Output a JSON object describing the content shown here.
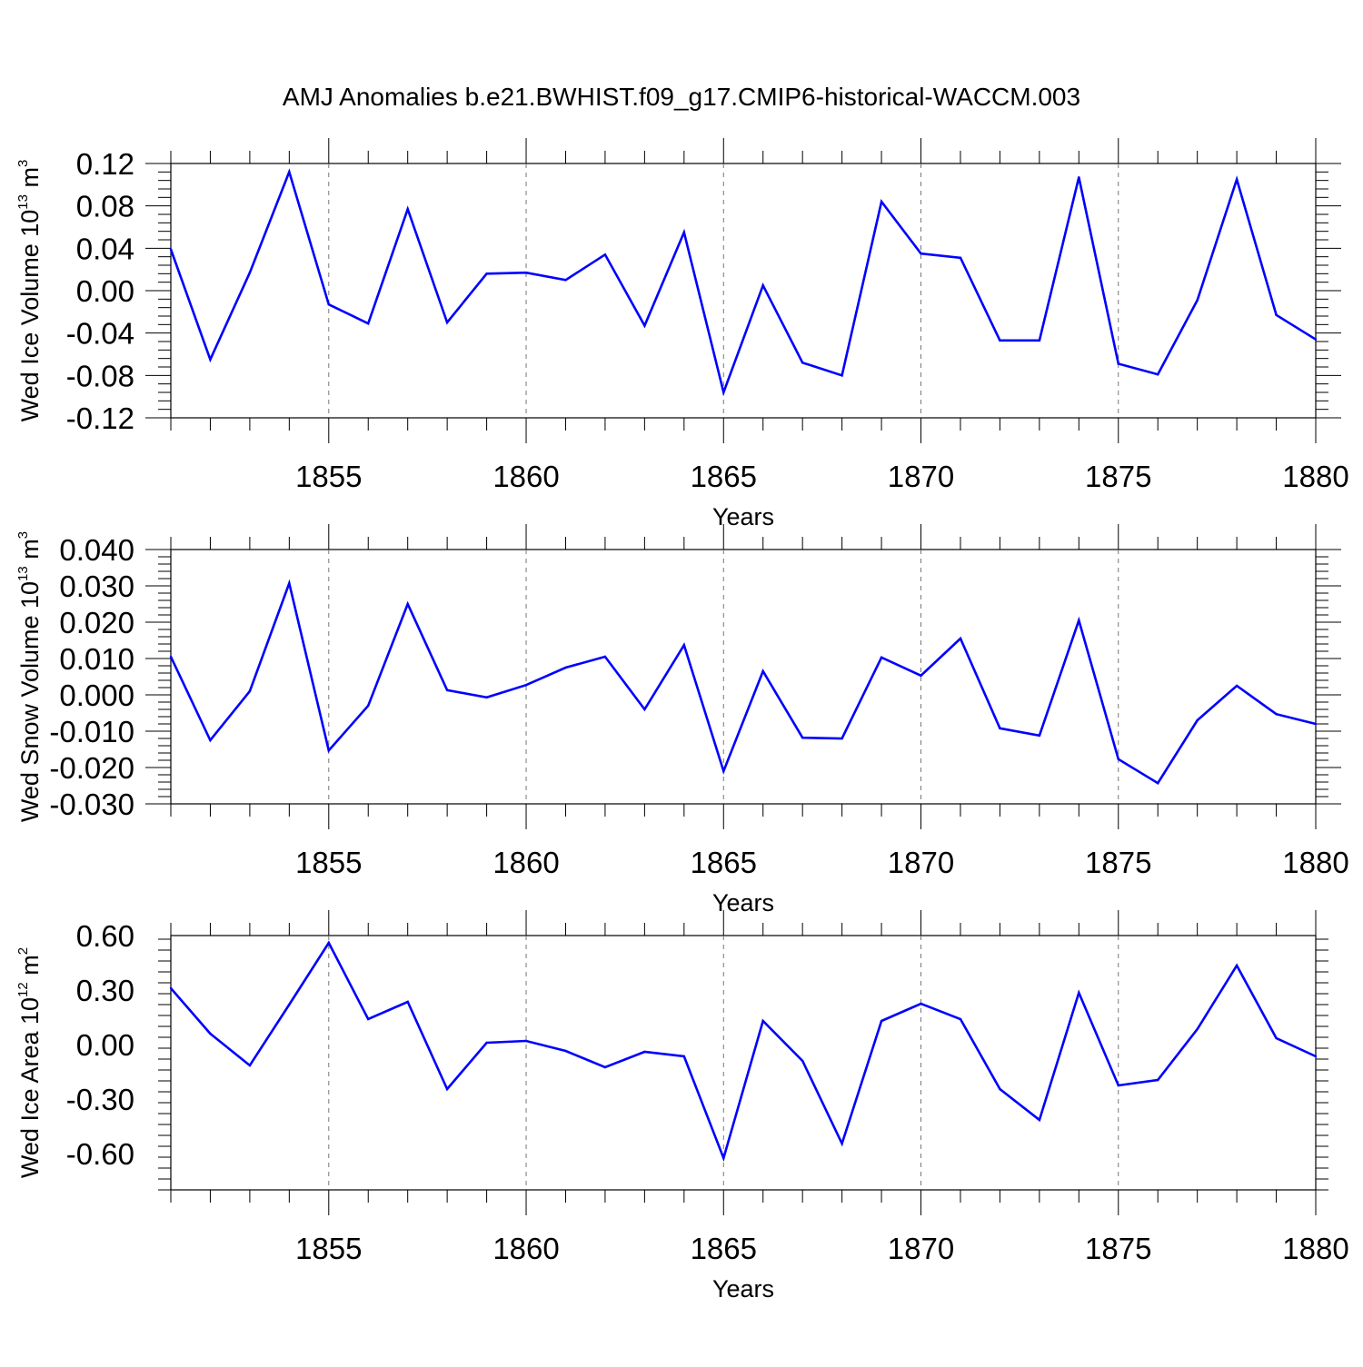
{
  "title": "AMJ Anomalies b.e21.BWHIST.f09_g17.CMIP6-historical-WACCM.003",
  "chart_data": [
    {
      "type": "line",
      "ylabel_text": "Wed Ice Volume 10",
      "ylabel_exp": "13",
      "ylabel_unit": " m",
      "ylabel_unit_exp": "3",
      "xlabel": "Years",
      "xlim": [
        1851,
        1880
      ],
      "ylim": [
        -0.12,
        0.12
      ],
      "yticks": [
        -0.12,
        -0.08,
        -0.04,
        0.0,
        0.04,
        0.08,
        0.12
      ],
      "ytick_labels": [
        "-0.12",
        "-0.08",
        "-0.04",
        "0.00",
        "0.04",
        "0.08",
        "0.12"
      ],
      "xticks": [
        1855,
        1860,
        1865,
        1870,
        1875,
        1880
      ],
      "xtick_labels": [
        "1855",
        "1860",
        "1865",
        "1870",
        "1875",
        "1880"
      ],
      "color": "#0000ff",
      "x": [
        1851,
        1852,
        1853,
        1854,
        1855,
        1856,
        1857,
        1858,
        1859,
        1860,
        1861,
        1862,
        1863,
        1864,
        1865,
        1866,
        1867,
        1868,
        1869,
        1870,
        1871,
        1872,
        1873,
        1874,
        1875,
        1876,
        1877,
        1878,
        1879,
        1880
      ],
      "values": [
        0.039,
        -0.065,
        0.017,
        0.112,
        -0.013,
        -0.031,
        0.077,
        -0.03,
        0.016,
        0.017,
        0.01,
        0.034,
        -0.033,
        0.055,
        -0.096,
        0.005,
        -0.068,
        -0.08,
        0.084,
        0.035,
        0.031,
        -0.047,
        -0.047,
        0.107,
        -0.069,
        -0.079,
        -0.009,
        0.105,
        -0.023,
        -0.046
      ]
    },
    {
      "type": "line",
      "ylabel_text": "Wed Snow Volume 10",
      "ylabel_exp": "13",
      "ylabel_unit": " m",
      "ylabel_unit_exp": "3",
      "xlabel": "Years",
      "xlim": [
        1851,
        1880
      ],
      "ylim": [
        -0.03,
        0.04
      ],
      "yticks": [
        -0.03,
        -0.02,
        -0.01,
        0.0,
        0.01,
        0.02,
        0.03,
        0.04
      ],
      "ytick_labels": [
        "-0.030",
        "-0.020",
        "-0.010",
        "0.000",
        "0.010",
        "0.020",
        "0.030",
        "0.040"
      ],
      "xticks": [
        1855,
        1860,
        1865,
        1870,
        1875,
        1880
      ],
      "xtick_labels": [
        "1855",
        "1860",
        "1865",
        "1870",
        "1875",
        "1880"
      ],
      "color": "#0000ff",
      "x": [
        1851,
        1852,
        1853,
        1854,
        1855,
        1856,
        1857,
        1858,
        1859,
        1860,
        1861,
        1862,
        1863,
        1864,
        1865,
        1866,
        1867,
        1868,
        1869,
        1870,
        1871,
        1872,
        1873,
        1874,
        1875,
        1876,
        1877,
        1878,
        1879,
        1880
      ],
      "values": [
        0.0105,
        -0.0125,
        0.001,
        0.0307,
        -0.0153,
        -0.003,
        0.025,
        0.0013,
        -0.0007,
        0.0027,
        0.0075,
        0.0105,
        -0.004,
        0.0137,
        -0.021,
        0.0065,
        -0.0118,
        -0.012,
        0.0103,
        0.0053,
        0.0155,
        -0.0092,
        -0.0112,
        0.0205,
        -0.0177,
        -0.0243,
        -0.007,
        0.0025,
        -0.0053,
        -0.008
      ]
    },
    {
      "type": "line",
      "ylabel_text": "Wed Ice Area 10",
      "ylabel_exp": "12",
      "ylabel_unit": " m",
      "ylabel_unit_exp": "2",
      "xlabel": "Years",
      "xlim": [
        1851,
        1880
      ],
      "ylim": [
        -0.8,
        0.6
      ],
      "yticks": [
        -0.6,
        -0.3,
        0.0,
        0.3,
        0.6
      ],
      "ytick_labels": [
        "-0.60",
        "-0.30",
        "0.00",
        "0.30",
        "0.60"
      ],
      "xticks": [
        1855,
        1860,
        1865,
        1870,
        1875,
        1880
      ],
      "xtick_labels": [
        "1855",
        "1860",
        "1865",
        "1870",
        "1875",
        "1880"
      ],
      "color": "#0000ff",
      "x": [
        1851,
        1852,
        1853,
        1854,
        1855,
        1856,
        1857,
        1858,
        1859,
        1860,
        1861,
        1862,
        1863,
        1864,
        1865,
        1866,
        1867,
        1868,
        1869,
        1870,
        1871,
        1872,
        1873,
        1874,
        1875,
        1876,
        1877,
        1878,
        1879,
        1880
      ],
      "values": [
        0.31,
        0.06,
        -0.115,
        0.22,
        0.56,
        0.14,
        0.235,
        -0.245,
        0.01,
        0.02,
        -0.035,
        -0.125,
        -0.04,
        -0.065,
        -0.625,
        0.13,
        -0.09,
        -0.545,
        0.13,
        0.225,
        0.14,
        -0.245,
        -0.415,
        0.285,
        -0.225,
        -0.195,
        0.085,
        0.435,
        0.035,
        -0.065
      ]
    }
  ]
}
